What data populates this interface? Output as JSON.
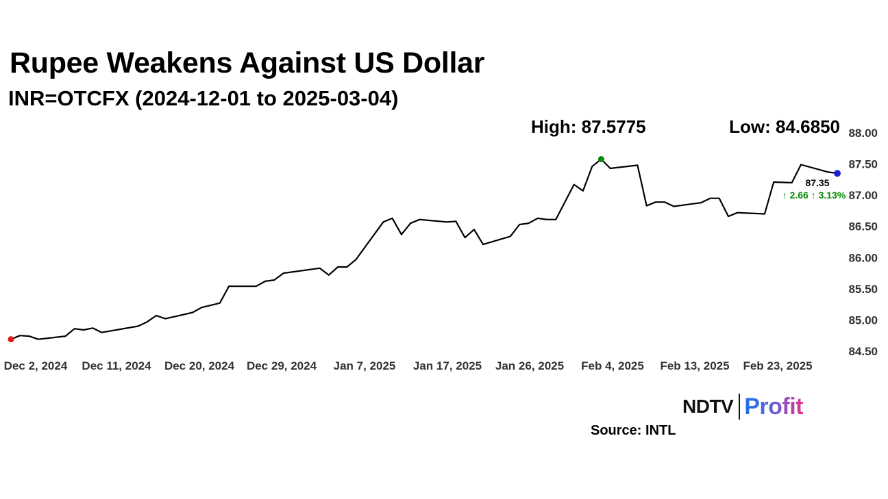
{
  "header": {
    "title": "Rupee Weakens Against US Dollar",
    "subtitle": "INR=OTCFX (2024-12-01 to 2025-03-04)"
  },
  "footer": {
    "logo_primary": "NDTV",
    "logo_secondary": "Profit",
    "source": "Source: INTL"
  },
  "colors": {
    "line": "#000000",
    "start_marker": "#e31a1c",
    "high_marker": "#0a8a0a",
    "last_marker": "#1f24c8",
    "change_text": "#0a8a0a"
  },
  "chart_data": {
    "type": "line",
    "title": "",
    "xlabel": "",
    "ylabel": "",
    "ylim": [
      84.5,
      88.0
    ],
    "y_ticks": [
      "84.50",
      "85.00",
      "85.50",
      "86.00",
      "86.50",
      "87.00",
      "87.50",
      "88.00"
    ],
    "x_tick_labels": [
      "Dec 2, 2024",
      "Dec 11, 2024",
      "Dec 20, 2024",
      "Dec 29, 2024",
      "Jan 7, 2025",
      "Jan 17, 2025",
      "Jan 26, 2025",
      "Feb 4, 2025",
      "Feb 13, 2025",
      "Feb 23, 2025"
    ],
    "grid": false,
    "high_label": "High: 87.5775",
    "low_label": "Low: 84.6850",
    "last_value_label": "87.35",
    "change_label": "↑ 2.66 ↑ 3.13%",
    "series": [
      {
        "points": [
          [
            0,
            84.69
          ],
          [
            1,
            84.75
          ],
          [
            2,
            84.74
          ],
          [
            3,
            84.69
          ],
          [
            6,
            84.74
          ],
          [
            7,
            84.86
          ],
          [
            8,
            84.84
          ],
          [
            9,
            84.87
          ],
          [
            10,
            84.8
          ],
          [
            14,
            84.9
          ],
          [
            15,
            84.97
          ],
          [
            16,
            85.07
          ],
          [
            17,
            85.02
          ],
          [
            20,
            85.12
          ],
          [
            21,
            85.2
          ],
          [
            23,
            85.27
          ],
          [
            24,
            85.54
          ],
          [
            27,
            85.54
          ],
          [
            28,
            85.62
          ],
          [
            29,
            85.64
          ],
          [
            30,
            85.75
          ],
          [
            34,
            85.83
          ],
          [
            35,
            85.72
          ],
          [
            36,
            85.85
          ],
          [
            37,
            85.85
          ],
          [
            38,
            85.97
          ],
          [
            41,
            86.57
          ],
          [
            42,
            86.63
          ],
          [
            43,
            86.37
          ],
          [
            44,
            86.55
          ],
          [
            45,
            86.61
          ],
          [
            48,
            86.57
          ],
          [
            49,
            86.58
          ],
          [
            50,
            86.32
          ],
          [
            51,
            86.45
          ],
          [
            52,
            86.21
          ],
          [
            55,
            86.34
          ],
          [
            56,
            86.53
          ],
          [
            57,
            86.55
          ],
          [
            58,
            86.63
          ],
          [
            59,
            86.61
          ],
          [
            60,
            86.61
          ],
          [
            62,
            87.17
          ],
          [
            63,
            87.07
          ],
          [
            64,
            87.46
          ],
          [
            65,
            87.5775
          ],
          [
            66,
            87.43
          ],
          [
            69,
            87.48
          ],
          [
            70,
            86.83
          ],
          [
            71,
            86.89
          ],
          [
            72,
            86.89
          ],
          [
            73,
            86.82
          ],
          [
            76,
            86.88
          ],
          [
            77,
            86.95
          ],
          [
            78,
            86.95
          ],
          [
            79,
            86.66
          ],
          [
            80,
            86.72
          ],
          [
            83,
            86.7
          ],
          [
            84,
            87.21
          ],
          [
            86,
            87.2
          ],
          [
            87,
            87.49
          ],
          [
            90,
            87.37
          ],
          [
            91,
            87.35
          ]
        ]
      }
    ]
  }
}
